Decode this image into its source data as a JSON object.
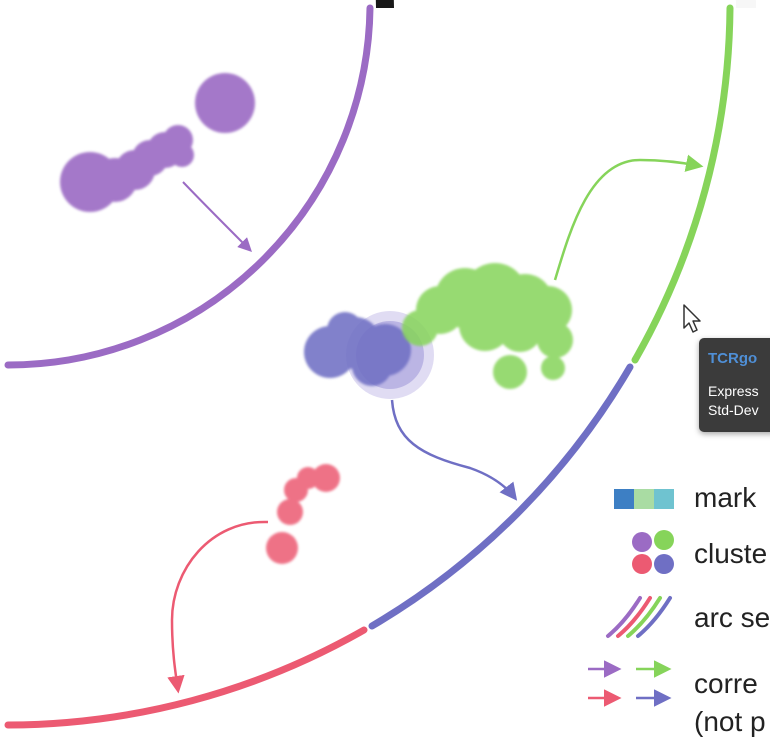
{
  "tooltip": {
    "title": "TCRgo",
    "line1": "Express",
    "line2": "Std-Dev"
  },
  "legend": {
    "marker_label": "mark",
    "cluster_label": "cluste",
    "arc_label": "arc se",
    "arrow_label_line1": "corre",
    "arrow_label_line2": "(not p"
  },
  "colors": {
    "purple": "#9b6bc4",
    "blue": "#6f6fc4",
    "green": "#86d45a",
    "red": "#ec5a72",
    "marker_dark_blue": "#3d7fc4",
    "marker_light_green": "#a9dca3",
    "marker_teal": "#6fc3d0"
  },
  "icons": {
    "cursor": "mouse-pointer-icon"
  }
}
